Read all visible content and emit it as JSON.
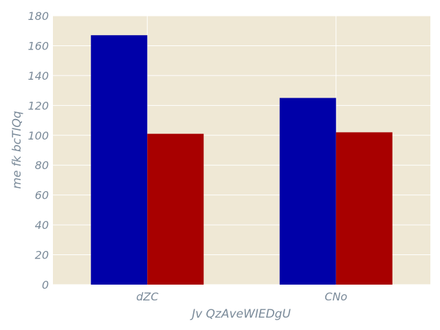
{
  "chart_data": {
    "type": "bar",
    "categories": [
      "dZC",
      "CNo"
    ],
    "series": [
      {
        "values": [
          167,
          125
        ],
        "color": "#0000a8"
      },
      {
        "values": [
          101,
          102
        ],
        "color": "#a80000"
      }
    ],
    "xlabel": "Jv QzAveWIEDgU",
    "ylabel": "me fk  bcTIQq",
    "ylim": [
      0,
      180
    ],
    "yticks": [
      0,
      20,
      40,
      60,
      80,
      100,
      120,
      140,
      160,
      180
    ],
    "grid": true,
    "background": "#efe8d5",
    "grid_color": "#ffffff",
    "text_color": "#7a8a99"
  }
}
